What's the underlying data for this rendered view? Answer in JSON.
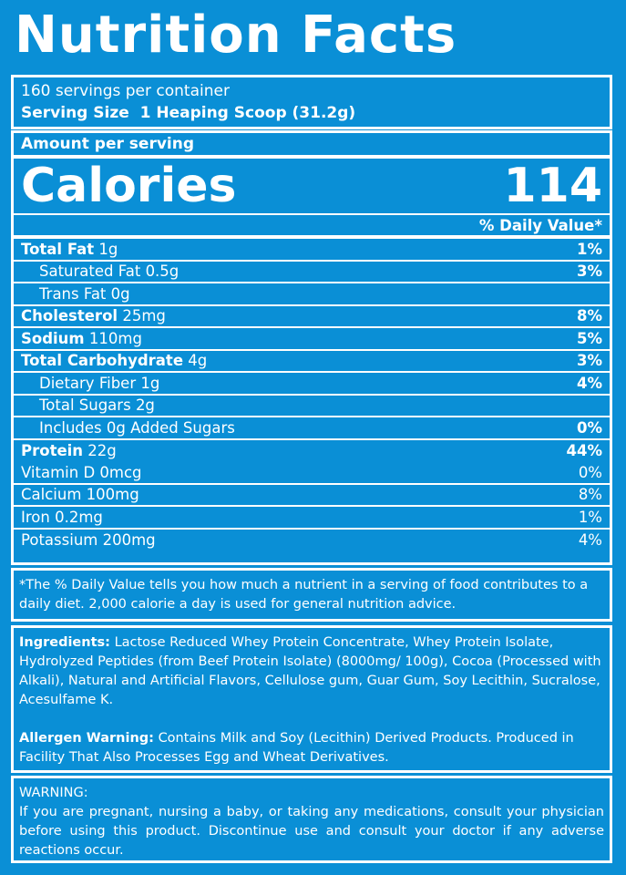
{
  "title": "Nutrition Facts",
  "servings": "160 servings per container",
  "serving_size": {
    "label": "Serving Size",
    "value": "1 Heaping Scoop (31.2g)"
  },
  "amount_per_serving": "Amount per serving",
  "calories": {
    "label": "Calories",
    "value": "114"
  },
  "daily_value_header": "% Daily Value*",
  "nutrients": [
    {
      "name": "Total Fat",
      "amount": "1g",
      "dv": "1%",
      "bold": true,
      "indent": false
    },
    {
      "name": "Saturated Fat",
      "amount": "0.5g",
      "dv": "3%",
      "bold": false,
      "indent": true
    },
    {
      "name": "Trans Fat",
      "amount": "0g",
      "dv": "",
      "bold": false,
      "indent": true
    },
    {
      "name": "Cholesterol",
      "amount": "25mg",
      "dv": "8%",
      "bold": true,
      "indent": false
    },
    {
      "name": "Sodium",
      "amount": "110mg",
      "dv": "5%",
      "bold": true,
      "indent": false
    },
    {
      "name": "Total Carbohydrate",
      "amount": "4g",
      "dv": "3%",
      "bold": true,
      "indent": false
    },
    {
      "name": "Dietary Fiber",
      "amount": "1g",
      "dv": "4%",
      "bold": false,
      "indent": true
    },
    {
      "name": "Total Sugars",
      "amount": "2g",
      "dv": "",
      "bold": false,
      "indent": true
    },
    {
      "name": "Includes 0g Added Sugars",
      "amount": "",
      "dv": "0%",
      "bold": false,
      "indent": true
    },
    {
      "name": "Protein",
      "amount": "22g",
      "dv": "44%",
      "bold": true,
      "indent": false
    }
  ],
  "vitamins": [
    {
      "name": "Vitamin D 0mcg",
      "dv": "0%"
    },
    {
      "name": "Calcium 100mg",
      "dv": "8%"
    },
    {
      "name": "Iron 0.2mg",
      "dv": "1%"
    },
    {
      "name": "Potassium 200mg",
      "dv": "4%"
    }
  ],
  "footnote": "*The % Daily Value tells you how much a nutrient in a serving of food contributes to a daily diet. 2,000 calorie a day is used for general nutrition advice.",
  "ingredients": {
    "label": "Ingredients:",
    "text": "Lactose Reduced Whey Protein Concentrate, Whey Protein Isolate, Hydrolyzed Peptides (from Beef Protein Isolate) (8000mg/ 100g), Cocoa (Processed with Alkali), Natural and Artificial Flavors, Cellulose gum, Guar Gum, Soy Lecithin, Sucralose, Acesulfame K."
  },
  "allergen": {
    "label": "Allergen Warning:",
    "text": "Contains Milk and Soy (Lecithin) Derived Products. Produced in Facility That Also Processes Egg and Wheat Derivatives."
  },
  "warning": {
    "title": "WARNING:",
    "text": "If you are pregnant, nursing a baby, or taking any medications, consult your physician before using this product. Discontinue use and consult your doctor if any adverse reactions occur."
  }
}
